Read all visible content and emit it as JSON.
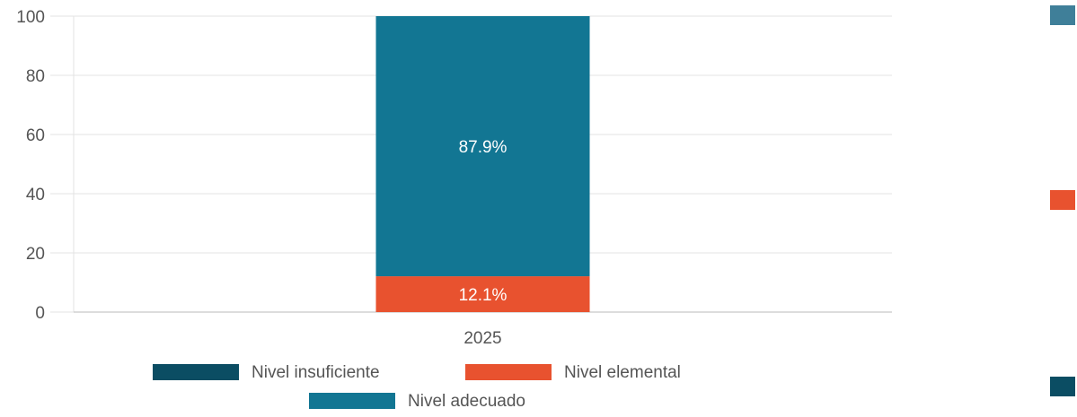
{
  "chart_data": {
    "type": "bar",
    "stacked": true,
    "categories": [
      "2025"
    ],
    "series": [
      {
        "name": "Nivel insuficiente",
        "values": [
          0
        ],
        "color": "#0b4d63",
        "label": ""
      },
      {
        "name": "Nivel elemental",
        "values": [
          12.1
        ],
        "color": "#e8522f",
        "label": "12.1%"
      },
      {
        "name": "Nivel adecuado",
        "values": [
          87.9
        ],
        "color": "#127693",
        "label": "87.9%"
      }
    ],
    "yticks": [
      "0",
      "20",
      "40",
      "60",
      "80",
      "100"
    ],
    "ylim": [
      0,
      100
    ],
    "grid": true,
    "legend_position": "bottom"
  },
  "side_markers": [
    "#3f7f99",
    "#e8522f",
    "#0b4d63"
  ]
}
